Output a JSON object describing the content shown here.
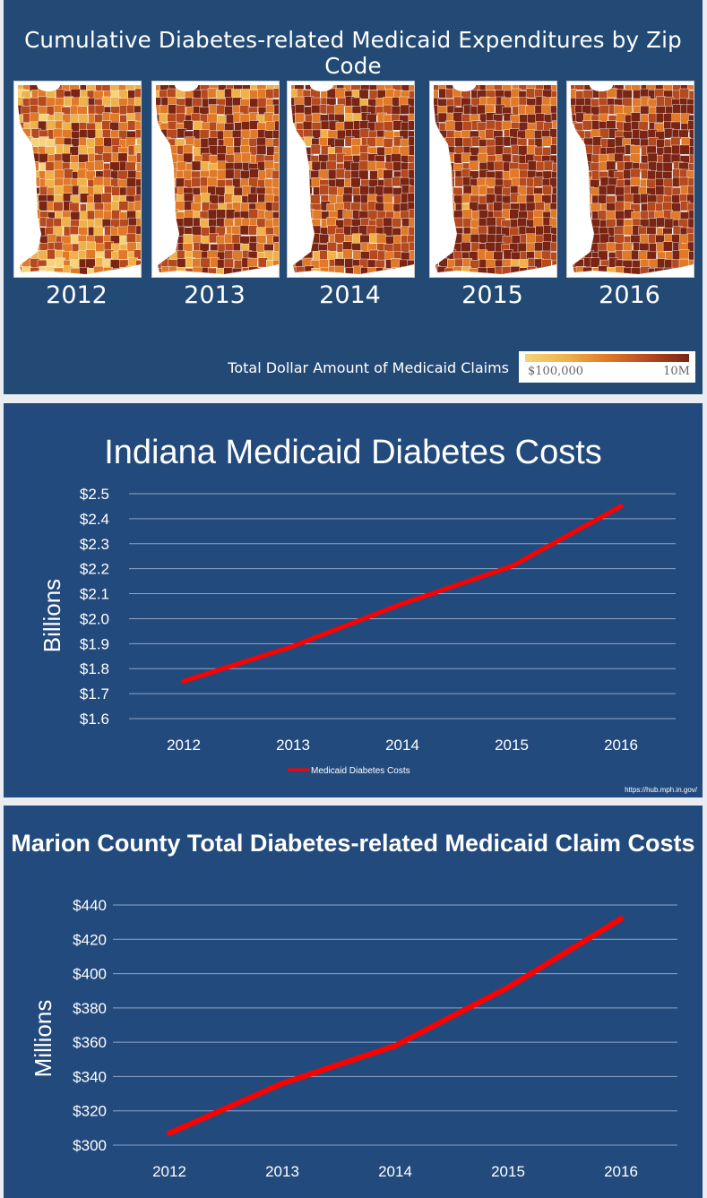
{
  "maps_panel": {
    "title": "Cumulative Diabetes-related Medicaid Expenditures by Zip Code",
    "years": [
      "2012",
      "2013",
      "2014",
      "2015",
      "2016"
    ],
    "darkness": [
      0.3,
      0.55,
      0.65,
      0.72,
      0.78
    ],
    "legend": {
      "title": "Total Dollar Amount of Medicaid Claims",
      "min_label": "$100,000",
      "max_label": "10M",
      "colors": [
        "#f6d27a",
        "#efb24a",
        "#e07a28",
        "#b64a1f",
        "#7a2514"
      ]
    }
  },
  "state_chart": {
    "source": "https://hub.mph.in.gov/",
    "chart_data": {
      "type": "line",
      "title": "Indiana Medicaid Diabetes Costs",
      "ylabel": "Billions",
      "xlabel": "",
      "x": [
        "2012",
        "2013",
        "2014",
        "2015",
        "2016"
      ],
      "series": [
        {
          "name": "Medicaid Diabetes Costs",
          "values": [
            1.75,
            1.89,
            2.06,
            2.21,
            2.45
          ],
          "color": "#ff0000"
        }
      ],
      "ylim": [
        1.6,
        2.5
      ],
      "yticks": [
        1.6,
        1.7,
        1.8,
        1.9,
        2.0,
        2.1,
        2.2,
        2.3,
        2.4,
        2.5
      ],
      "ytick_labels": [
        "$1.6",
        "$1.7",
        "$1.8",
        "$1.9",
        "$2.0",
        "$2.1",
        "$2.2",
        "$2.3",
        "$2.4",
        "$2.5"
      ],
      "grid": true,
      "legend": "bottom"
    }
  },
  "county_chart": {
    "chart_data": {
      "type": "line",
      "title": "Marion County Total Diabetes-related Medicaid Claim Costs",
      "ylabel": "Millions",
      "xlabel": "",
      "x": [
        "2012",
        "2013",
        "2014",
        "2015",
        "2016"
      ],
      "series": [
        {
          "values": [
            307,
            336,
            358,
            392,
            432
          ],
          "color": "#ff0000"
        }
      ],
      "ylim": [
        300,
        440
      ],
      "yticks": [
        300,
        320,
        340,
        360,
        380,
        400,
        420,
        440
      ],
      "ytick_labels": [
        "$300",
        "$320",
        "$340",
        "$360",
        "$380",
        "$400",
        "$420",
        "$440"
      ],
      "grid": true
    }
  }
}
